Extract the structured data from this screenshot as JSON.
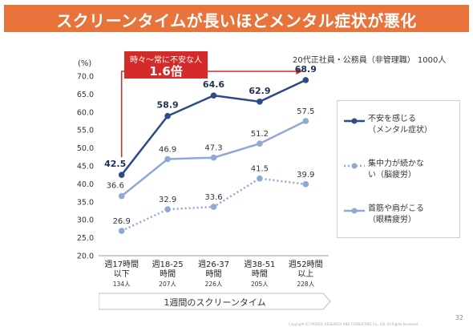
{
  "header": {
    "title": "スクリーンタイムが長いほどメンタル症状が悪化"
  },
  "subtitle": "20代正社員・公務員（非管理職） 1000人",
  "callout": {
    "line1": "時々～常に不安な人",
    "line2": "1.6倍"
  },
  "footer": {
    "axis_title": "1週間のスクリーンタイム",
    "page_number": "32",
    "copyright": "Copyright (C) PERSOL RESEARCH AND CONSULTING Co., Ltd. All Rights Reserved."
  },
  "colors": {
    "title_bg": "#e8743b",
    "series1": "#2e4a87",
    "series2": "#8fa8d4",
    "series3": "#8fa8d4",
    "callout": "#d42a2a"
  },
  "chart_data": {
    "type": "line",
    "ylabel": "(%)",
    "ylim": [
      20,
      70
    ],
    "yticks": [
      "70.0",
      "65.0",
      "60.0",
      "55.0",
      "50.0",
      "45.0",
      "40.0",
      "35.0",
      "30.0",
      "25.0",
      "20.0"
    ],
    "categories": [
      {
        "line1": "週17時間",
        "line2": "以下",
        "n": "134人"
      },
      {
        "line1": "週18-25",
        "line2": "時間",
        "n": "207人"
      },
      {
        "line1": "週26-37",
        "line2": "時間",
        "n": "226人"
      },
      {
        "line1": "週38-51",
        "line2": "時間",
        "n": "205人"
      },
      {
        "line1": "週52時間",
        "line2": "以上",
        "n": "228人"
      }
    ],
    "series": [
      {
        "name_line1": "不安を感じる",
        "name_line2": "（メンタル症状）",
        "values": [
          42.5,
          58.9,
          64.6,
          62.9,
          68.9
        ],
        "labels": [
          "42.5",
          "58.9",
          "64.6",
          "62.9",
          "68.9"
        ],
        "style": "solid-dark"
      },
      {
        "name_line1": "集中力が続かな",
        "name_line2": "い（脳疲労）",
        "values": [
          26.9,
          32.9,
          33.6,
          41.5,
          39.9
        ],
        "labels": [
          "26.9",
          "32.9",
          "33.6",
          "41.5",
          "39.9"
        ],
        "style": "dotted"
      },
      {
        "name_line1": "首筋や肩がこる",
        "name_line2": "（眼精疲労）",
        "values": [
          36.6,
          46.9,
          47.3,
          51.2,
          57.5
        ],
        "labels": [
          "36.6",
          "46.9",
          "47.3",
          "51.2",
          "57.5"
        ],
        "style": "solid-light"
      }
    ]
  }
}
